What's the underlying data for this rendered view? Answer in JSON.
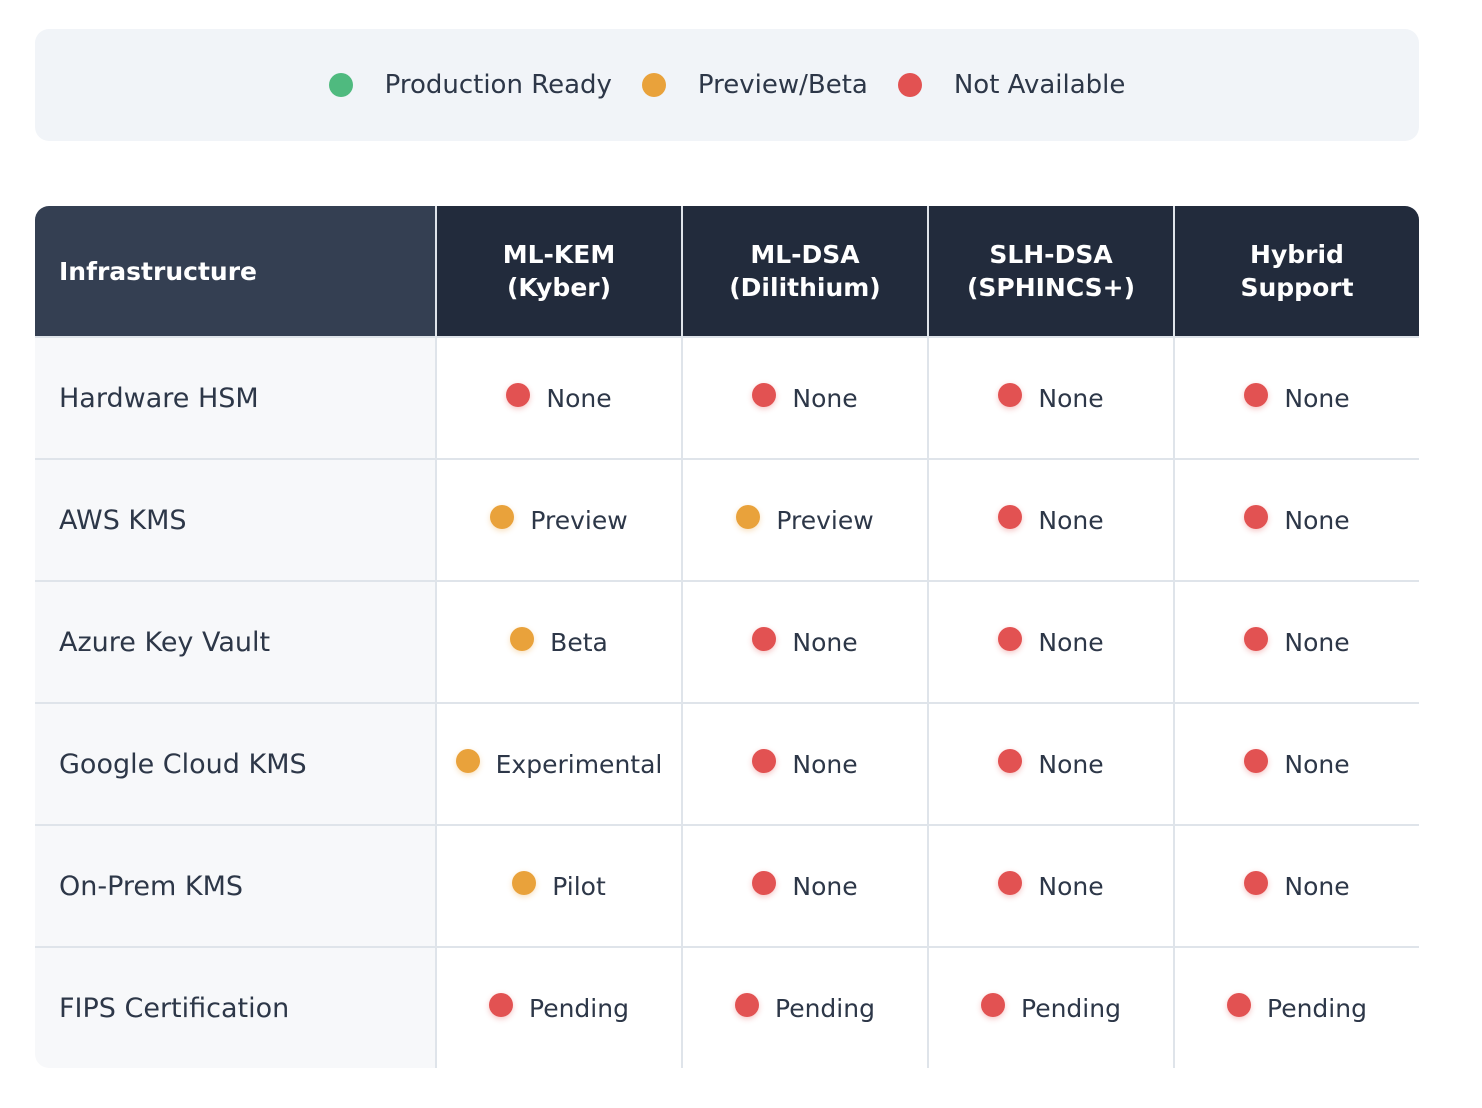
{
  "colors": {
    "production": "#4fba7f",
    "preview": "#e9a23b",
    "none": "#e25252"
  },
  "legend": [
    {
      "label": "Production Ready",
      "status": "production"
    },
    {
      "label": "Preview/Beta",
      "status": "preview"
    },
    {
      "label": "Not Available",
      "status": "none"
    }
  ],
  "table": {
    "headers": [
      "Infrastructure",
      "ML-KEM\n(Kyber)",
      "ML-DSA\n(Dilithium)",
      "SLH-DSA\n(SPHINCS+)",
      "Hybrid\nSupport"
    ],
    "rows": [
      {
        "name": "Hardware HSM",
        "cells": [
          {
            "text": "None",
            "status": "none"
          },
          {
            "text": "None",
            "status": "none"
          },
          {
            "text": "None",
            "status": "none"
          },
          {
            "text": "None",
            "status": "none"
          }
        ]
      },
      {
        "name": "AWS KMS",
        "cells": [
          {
            "text": "Preview",
            "status": "preview"
          },
          {
            "text": "Preview",
            "status": "preview"
          },
          {
            "text": "None",
            "status": "none"
          },
          {
            "text": "None",
            "status": "none"
          }
        ]
      },
      {
        "name": "Azure Key Vault",
        "cells": [
          {
            "text": "Beta",
            "status": "preview"
          },
          {
            "text": "None",
            "status": "none"
          },
          {
            "text": "None",
            "status": "none"
          },
          {
            "text": "None",
            "status": "none"
          }
        ]
      },
      {
        "name": "Google Cloud KMS",
        "cells": [
          {
            "text": "Experimental",
            "status": "preview"
          },
          {
            "text": "None",
            "status": "none"
          },
          {
            "text": "None",
            "status": "none"
          },
          {
            "text": "None",
            "status": "none"
          }
        ]
      },
      {
        "name": "On-Prem KMS",
        "cells": [
          {
            "text": "Pilot",
            "status": "preview"
          },
          {
            "text": "None",
            "status": "none"
          },
          {
            "text": "None",
            "status": "none"
          },
          {
            "text": "None",
            "status": "none"
          }
        ]
      },
      {
        "name": "FIPS Certification",
        "cells": [
          {
            "text": "Pending",
            "status": "none"
          },
          {
            "text": "Pending",
            "status": "none"
          },
          {
            "text": "Pending",
            "status": "none"
          },
          {
            "text": "Pending",
            "status": "none"
          }
        ]
      }
    ]
  }
}
